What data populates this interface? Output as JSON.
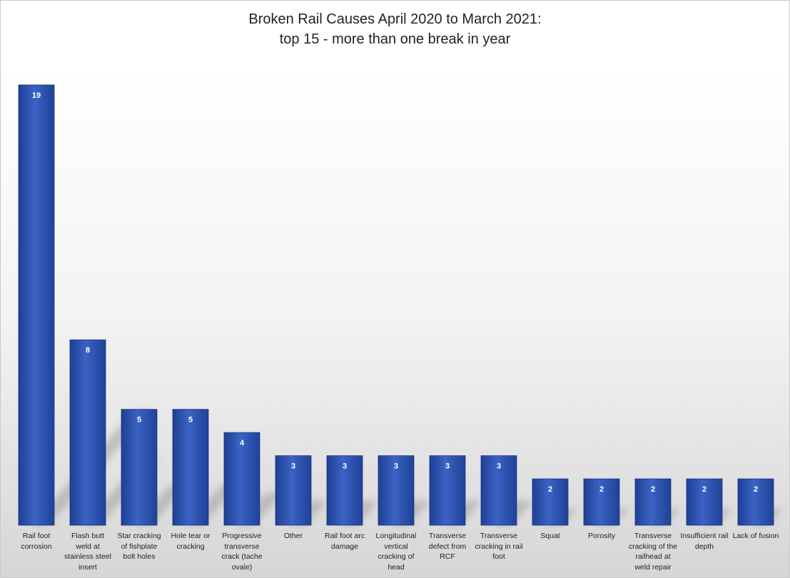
{
  "chart_data": {
    "type": "bar",
    "title_lines": [
      "Broken Rail Causes April 2020 to March 2021:",
      "top 15 - more than one break in year"
    ],
    "categories": [
      "Rail foot corrosion",
      "Flash butt weld at stainless steel insert",
      "Star cracking of fishplate bolt holes",
      "Hole tear or cracking",
      "Progressive transverse crack (tache ovale)",
      "Other",
      "Rail foot arc damage",
      "Longitudinal vertical cracking of head",
      "Transverse defect from RCF",
      "Transverse cracking in rail foot",
      "Squat",
      "Porosity",
      "Transverse cracking of the railhead at weld repair",
      "Insufficient rail depth",
      "Lack of fusion"
    ],
    "values": [
      19,
      8,
      5,
      5,
      4,
      3,
      3,
      3,
      3,
      3,
      2,
      2,
      2,
      2,
      2
    ],
    "ylim": [
      0,
      19
    ],
    "bar_color": "#2a4fa8",
    "label_color": "#ffffff",
    "grid": false,
    "legend": "none"
  }
}
